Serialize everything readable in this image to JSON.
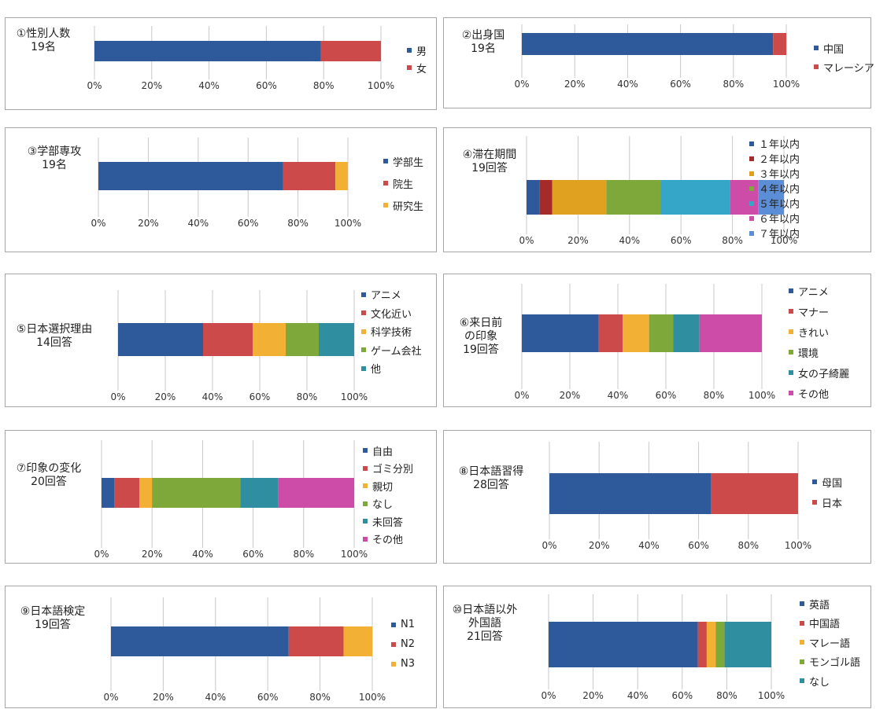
{
  "colors": {
    "blue": "#2e5a9c",
    "red": "#cc4a4a",
    "orange": "#f2b134",
    "amber": "#e0a020",
    "green": "#7fa83a",
    "teal": "#2f8fa0",
    "cyan": "#36a6c8",
    "magenta": "#cc4ca8",
    "darkred": "#a52b2b",
    "skyblue": "#5b8ed6"
  },
  "chart_data": [
    {
      "type": "bar",
      "stacked": true,
      "orientation": "horizontal",
      "title": "①性別人数\n19名",
      "xlim": [
        0,
        100
      ],
      "ticks": [
        "0%",
        "20%",
        "40%",
        "60%",
        "80%",
        "100%"
      ],
      "series": [
        {
          "name": "男",
          "values": [
            79
          ],
          "color": "#2e5a9c"
        },
        {
          "name": "女",
          "values": [
            21
          ],
          "color": "#cc4a4a"
        }
      ]
    },
    {
      "type": "bar",
      "stacked": true,
      "orientation": "horizontal",
      "title": "②出身国\n19名",
      "xlim": [
        0,
        100
      ],
      "ticks": [
        "0%",
        "20%",
        "40%",
        "60%",
        "80%",
        "100%"
      ],
      "series": [
        {
          "name": "中国",
          "values": [
            95
          ],
          "color": "#2e5a9c"
        },
        {
          "name": "マレーシア",
          "values": [
            5
          ],
          "color": "#cc4a4a"
        }
      ]
    },
    {
      "type": "bar",
      "stacked": true,
      "orientation": "horizontal",
      "title": "③学部専攻\n19名",
      "xlim": [
        0,
        100
      ],
      "ticks": [
        "0%",
        "20%",
        "40%",
        "60%",
        "80%",
        "100%"
      ],
      "series": [
        {
          "name": "学部生",
          "values": [
            74
          ],
          "color": "#2e5a9c"
        },
        {
          "name": "院生",
          "values": [
            21
          ],
          "color": "#cc4a4a"
        },
        {
          "name": "研究生",
          "values": [
            5
          ],
          "color": "#f2b134"
        }
      ]
    },
    {
      "type": "bar",
      "stacked": true,
      "orientation": "horizontal",
      "title": "④滞在期間\n19回答",
      "xlim": [
        0,
        100
      ],
      "ticks": [
        "0%",
        "20%",
        "40%",
        "60%",
        "80%",
        "100%"
      ],
      "series": [
        {
          "name": "１年以内",
          "values": [
            5
          ],
          "color": "#2e5a9c"
        },
        {
          "name": "２年以内",
          "values": [
            5
          ],
          "color": "#a52b2b"
        },
        {
          "name": "３年以内",
          "values": [
            21
          ],
          "color": "#e0a020"
        },
        {
          "name": "４年以内",
          "values": [
            21
          ],
          "color": "#7fa83a"
        },
        {
          "name": "５年以内",
          "values": [
            27
          ],
          "color": "#36a6c8"
        },
        {
          "name": "６年以内",
          "values": [
            11
          ],
          "color": "#cc4ca8"
        },
        {
          "name": "７年以内",
          "values": [
            10
          ],
          "color": "#5b8ed6"
        }
      ]
    },
    {
      "type": "bar",
      "stacked": true,
      "orientation": "horizontal",
      "title": "⑤日本選択理由\n14回答",
      "xlim": [
        0,
        100
      ],
      "ticks": [
        "0%",
        "20%",
        "40%",
        "60%",
        "80%",
        "100%"
      ],
      "series": [
        {
          "name": "アニメ",
          "values": [
            36
          ],
          "color": "#2e5a9c"
        },
        {
          "name": "文化近い",
          "values": [
            21
          ],
          "color": "#cc4a4a"
        },
        {
          "name": "科学技術",
          "values": [
            14
          ],
          "color": "#f2b134"
        },
        {
          "name": "ゲーム会社",
          "values": [
            14
          ],
          "color": "#7fa83a"
        },
        {
          "name": "他",
          "values": [
            15
          ],
          "color": "#2f8fa0"
        }
      ]
    },
    {
      "type": "bar",
      "stacked": true,
      "orientation": "horizontal",
      "title": "⑥来日前\nの印象\n19回答",
      "xlim": [
        0,
        100
      ],
      "ticks": [
        "0%",
        "20%",
        "40%",
        "60%",
        "80%",
        "100%"
      ],
      "series": [
        {
          "name": "アニメ",
          "values": [
            32
          ],
          "color": "#2e5a9c"
        },
        {
          "name": "マナー",
          "values": [
            10
          ],
          "color": "#cc4a4a"
        },
        {
          "name": "きれい",
          "values": [
            11
          ],
          "color": "#f2b134"
        },
        {
          "name": "環境",
          "values": [
            10
          ],
          "color": "#7fa83a"
        },
        {
          "name": "女の子綺麗",
          "values": [
            11
          ],
          "color": "#2f8fa0"
        },
        {
          "name": "その他",
          "values": [
            26
          ],
          "color": "#cc4ca8"
        }
      ]
    },
    {
      "type": "bar",
      "stacked": true,
      "orientation": "horizontal",
      "title": "⑦印象の変化\n20回答",
      "xlim": [
        0,
        100
      ],
      "ticks": [
        "0%",
        "20%",
        "40%",
        "60%",
        "80%",
        "100%"
      ],
      "series": [
        {
          "name": "自由",
          "values": [
            5
          ],
          "color": "#2e5a9c"
        },
        {
          "name": "ゴミ分別",
          "values": [
            10
          ],
          "color": "#cc4a4a"
        },
        {
          "name": "親切",
          "values": [
            5
          ],
          "color": "#f2b134"
        },
        {
          "name": "なし",
          "values": [
            35
          ],
          "color": "#7fa83a"
        },
        {
          "name": "未回答",
          "values": [
            15
          ],
          "color": "#2f8fa0"
        },
        {
          "name": "その他",
          "values": [
            30
          ],
          "color": "#cc4ca8"
        }
      ]
    },
    {
      "type": "bar",
      "stacked": true,
      "orientation": "horizontal",
      "title": "⑧日本語習得\n28回答",
      "xlim": [
        0,
        100
      ],
      "ticks": [
        "0%",
        "20%",
        "40%",
        "60%",
        "80%",
        "100%"
      ],
      "series": [
        {
          "name": "母国",
          "values": [
            65
          ],
          "color": "#2e5a9c"
        },
        {
          "name": "日本",
          "values": [
            35
          ],
          "color": "#cc4a4a"
        }
      ]
    },
    {
      "type": "bar",
      "stacked": true,
      "orientation": "horizontal",
      "title": "⑨日本語検定\n19回答",
      "xlim": [
        0,
        100
      ],
      "ticks": [
        "0%",
        "20%",
        "40%",
        "60%",
        "80%",
        "100%"
      ],
      "series": [
        {
          "name": "N1",
          "values": [
            68
          ],
          "color": "#2e5a9c"
        },
        {
          "name": "N2",
          "values": [
            21
          ],
          "color": "#cc4a4a"
        },
        {
          "name": "N3",
          "values": [
            11
          ],
          "color": "#f2b134"
        }
      ]
    },
    {
      "type": "bar",
      "stacked": true,
      "orientation": "horizontal",
      "title": "⑩日本語以外\n外国語\n21回答",
      "xlim": [
        0,
        100
      ],
      "ticks": [
        "0%",
        "20%",
        "40%",
        "60%",
        "80%",
        "100%"
      ],
      "series": [
        {
          "name": "英語",
          "values": [
            67
          ],
          "color": "#2e5a9c"
        },
        {
          "name": "中国語",
          "values": [
            4
          ],
          "color": "#cc4a4a"
        },
        {
          "name": "マレー語",
          "values": [
            4
          ],
          "color": "#f2b134"
        },
        {
          "name": "モンゴル語",
          "values": [
            4
          ],
          "color": "#7fa83a"
        },
        {
          "name": "なし",
          "values": [
            21
          ],
          "color": "#2f8fa0"
        }
      ]
    }
  ]
}
